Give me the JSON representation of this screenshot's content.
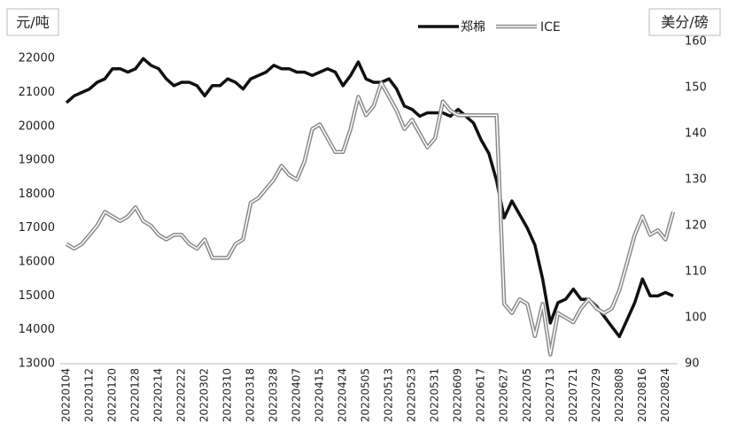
{
  "chart_data": {
    "type": "line",
    "y_label": "元/吨",
    "y2_label": "美分/磅",
    "categories": [
      "20220104",
      null,
      null,
      "20220112",
      null,
      null,
      "20220120",
      null,
      null,
      "20220128",
      null,
      null,
      "20220214",
      null,
      null,
      "20220222",
      null,
      null,
      "20220302",
      null,
      null,
      "20220310",
      null,
      null,
      "20220318",
      null,
      null,
      "20220328",
      null,
      null,
      "20220407",
      null,
      null,
      "20220415",
      null,
      null,
      "20220424",
      null,
      null,
      "20220505",
      null,
      null,
      "20220513",
      null,
      null,
      "20220523",
      null,
      null,
      "20220531",
      null,
      null,
      "20220609",
      null,
      null,
      "20220617",
      null,
      null,
      "20220627",
      null,
      null,
      "20220705",
      null,
      null,
      "20220713",
      null,
      null,
      "20220721",
      null,
      null,
      "20220729",
      null,
      null,
      "20220808",
      null,
      null,
      "20220816",
      null,
      null,
      "20220824",
      null
    ],
    "series": [
      {
        "name": "郑棉",
        "color": "#111111",
        "axis": "y",
        "values": [
          20700,
          20900,
          21000,
          21100,
          21300,
          21400,
          21700,
          21700,
          21600,
          21700,
          22000,
          21800,
          21700,
          21400,
          21200,
          21300,
          21300,
          21200,
          20900,
          21200,
          21200,
          21400,
          21300,
          21100,
          21400,
          21500,
          21600,
          21800,
          21700,
          21700,
          21600,
          21600,
          21500,
          21600,
          21700,
          21600,
          21200,
          21500,
          21900,
          21400,
          21300,
          21300,
          21400,
          21100,
          20600,
          20500,
          20300,
          20400,
          20400,
          20400,
          20300,
          20500,
          20300,
          20100,
          19600,
          19200,
          18400,
          17300,
          17800,
          17400,
          17000,
          16500,
          15500,
          14200,
          14800,
          14900,
          15200,
          14900,
          14900,
          14700,
          14400,
          14100,
          13800,
          14300,
          14800,
          15500,
          15000,
          15000,
          15100,
          15000
        ]
      },
      {
        "name": "ICE",
        "color": "#8a8a8a",
        "axis": "y2",
        "values": [
          116,
          115,
          116,
          118,
          120,
          123,
          122,
          121,
          122,
          124,
          121,
          120,
          118,
          117,
          118,
          118,
          116,
          115,
          117,
          113,
          113,
          113,
          116,
          117,
          125,
          126,
          128,
          130,
          133,
          131,
          130,
          134,
          141,
          142,
          139,
          136,
          136,
          141,
          148,
          144,
          146,
          151,
          148,
          145,
          141,
          143,
          140,
          137,
          139,
          147,
          145,
          144,
          144,
          144,
          144,
          144,
          144,
          103,
          101,
          104,
          103,
          96,
          103,
          92,
          101,
          100,
          99,
          102,
          104,
          102,
          101,
          102,
          106,
          112,
          118,
          122,
          118,
          119,
          117,
          123
        ]
      }
    ],
    "ylim": [
      13000,
      22500
    ],
    "yticks": [
      13000,
      14000,
      15000,
      16000,
      17000,
      18000,
      19000,
      20000,
      21000,
      22000
    ],
    "y2lim": [
      90,
      160
    ],
    "y2ticks": [
      90,
      100,
      110,
      120,
      130,
      140,
      150,
      160
    ],
    "legend": "top"
  }
}
